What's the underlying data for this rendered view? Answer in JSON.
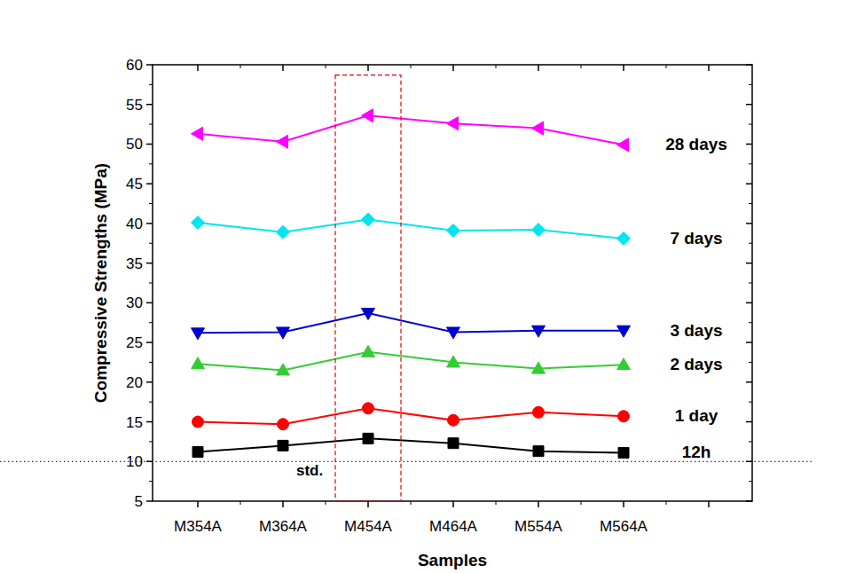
{
  "chart_data": {
    "type": "line",
    "xlabel": "Samples",
    "ylabel": "Compressive Strengths (MPa)",
    "categories": [
      "M354A",
      "M364A",
      "M454A",
      "M464A",
      "M554A",
      "M564A",
      null
    ],
    "series": [
      {
        "name": "28 days",
        "color": "#ff00ff",
        "marker": "triangle-left",
        "values": [
          51.3,
          50.3,
          53.6,
          52.6,
          52.0,
          49.9,
          null
        ]
      },
      {
        "name": "7 days",
        "color": "#00e5ee",
        "marker": "diamond",
        "values": [
          40.1,
          38.9,
          40.5,
          39.1,
          39.2,
          38.1,
          null
        ]
      },
      {
        "name": "3 days",
        "color": "#0000cc",
        "marker": "triangle-down",
        "values": [
          26.2,
          26.3,
          28.7,
          26.3,
          26.5,
          26.5,
          null
        ]
      },
      {
        "name": "2 days",
        "color": "#33cc33",
        "marker": "triangle-up",
        "values": [
          22.3,
          21.5,
          23.8,
          22.5,
          21.7,
          22.2,
          null
        ]
      },
      {
        "name": "1 day",
        "color": "#ff0000",
        "marker": "circle",
        "values": [
          15.0,
          14.7,
          16.7,
          15.2,
          16.2,
          15.7,
          null
        ]
      },
      {
        "name": "12h",
        "color": "#000000",
        "marker": "square",
        "values": [
          11.2,
          12.0,
          12.9,
          12.3,
          11.3,
          11.1,
          null
        ]
      }
    ],
    "ylim": [
      5,
      60
    ],
    "yticks": [
      5,
      10,
      15,
      20,
      25,
      30,
      35,
      40,
      45,
      50,
      55,
      60
    ],
    "grid": false,
    "annotations": [
      {
        "text": "std.",
        "y": 10
      },
      {
        "x": 2,
        "ylim": [
          5,
          58.7
        ]
      }
    ]
  }
}
